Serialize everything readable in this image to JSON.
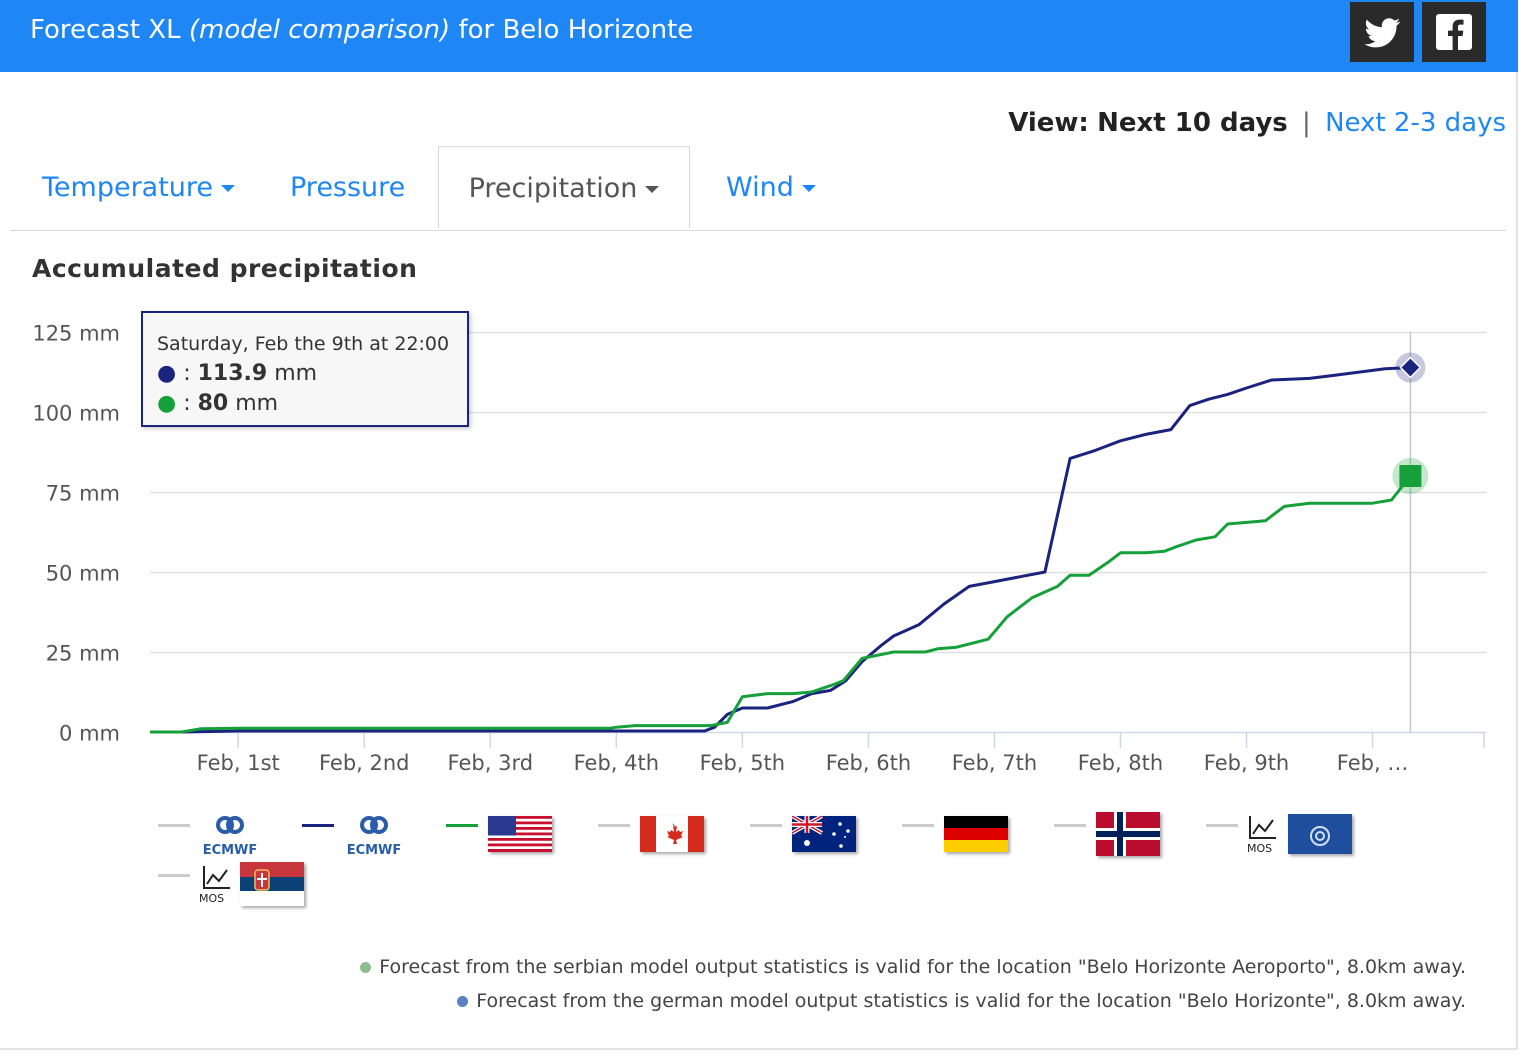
{
  "header": {
    "title_prefix": "Forecast XL",
    "title_italic": "(model comparison)",
    "title_suffix": "for Belo Horizonte",
    "twitter_icon": "twitter-icon",
    "facebook_icon": "facebook-icon"
  },
  "view": {
    "label": "View:",
    "current": "Next 10 days",
    "separator": "|",
    "alternate": "Next 2-3 days"
  },
  "tabs": [
    {
      "label": "Temperature",
      "dropdown": true
    },
    {
      "label": "Pressure",
      "dropdown": false
    },
    {
      "label": "Precipitation",
      "dropdown": true,
      "active": true
    },
    {
      "label": "Wind",
      "dropdown": true
    }
  ],
  "tooltip": {
    "header": "Saturday, Feb the 9th at 22:00",
    "rows": [
      {
        "sep": ":",
        "value": "113.9",
        "unit": "mm",
        "color": "#1a237e"
      },
      {
        "sep": ":",
        "value": "80",
        "unit": "mm",
        "color": "#16a03a"
      }
    ]
  },
  "chart_data": {
    "type": "line",
    "title": "Accumulated precipitation",
    "y_unit": "mm",
    "ylim": [
      0,
      125
    ],
    "y_ticks": [
      0,
      25,
      50,
      75,
      100,
      125
    ],
    "y_tick_labels": [
      "0 mm",
      "25 mm",
      "50 mm",
      "75 mm",
      "100 mm",
      "125 mm"
    ],
    "xlim": [
      0.3,
      10.9
    ],
    "x_ticks": [
      1,
      2,
      3,
      4,
      5,
      6,
      7,
      8,
      9,
      10
    ],
    "x_tick_labels": [
      "Feb, 1st",
      "Feb, 2nd",
      "Feb, 3rd",
      "Feb, 4th",
      "Feb, 5th",
      "Feb, 6th",
      "Feb, 7th",
      "Feb, 8th",
      "Feb, 9th",
      "Feb, …"
    ],
    "x_unit": "day of February",
    "grid": true,
    "series": [
      {
        "color": "#1a237e",
        "x": [
          0.3,
          0.55,
          1.0,
          2.0,
          3.0,
          4.0,
          4.7,
          4.78,
          4.88,
          5.0,
          5.2,
          5.4,
          5.55,
          5.7,
          5.82,
          5.95,
          6.1,
          6.2,
          6.4,
          6.6,
          6.8,
          7.0,
          7.2,
          7.4,
          7.6,
          7.8,
          8.0,
          8.2,
          8.4,
          8.55,
          8.7,
          8.85,
          9.0,
          9.2,
          9.5,
          9.7,
          9.9,
          10.1,
          10.3
        ],
        "values": [
          0,
          0,
          0.3,
          0.3,
          0.3,
          0.3,
          0.3,
          1.5,
          5.5,
          7.5,
          7.5,
          9.5,
          12,
          13,
          16,
          22,
          27,
          30,
          33.5,
          40,
          45.5,
          47,
          48.5,
          50,
          85.5,
          88,
          91,
          93,
          94.5,
          102,
          104,
          105.5,
          107.5,
          110,
          110.5,
          111.5,
          112.5,
          113.5,
          113.9
        ]
      },
      {
        "color": "#16a03a",
        "x": [
          0.3,
          0.55,
          0.7,
          1.0,
          2.0,
          3.0,
          3.95,
          4.0,
          4.15,
          4.3,
          4.6,
          4.75,
          4.88,
          5.0,
          5.2,
          5.4,
          5.55,
          5.7,
          5.8,
          5.95,
          6.2,
          6.45,
          6.55,
          6.7,
          6.95,
          7.1,
          7.3,
          7.5,
          7.6,
          7.75,
          7.9,
          8.0,
          8.2,
          8.35,
          8.45,
          8.6,
          8.75,
          8.85,
          9.0,
          9.15,
          9.3,
          9.5,
          9.7,
          9.9,
          10.0,
          10.15,
          10.3
        ],
        "values": [
          0,
          0,
          1,
          1.2,
          1.2,
          1.2,
          1.2,
          1.5,
          2,
          2,
          2,
          2,
          3,
          11,
          12,
          12,
          12.5,
          14.5,
          16,
          23,
          25,
          25,
          26,
          26.5,
          29,
          36,
          42,
          45.5,
          49,
          49,
          53,
          56,
          56,
          56.5,
          58,
          60,
          61,
          65,
          65.5,
          66,
          70.5,
          71.5,
          71.5,
          71.5,
          71.5,
          72.5,
          80
        ]
      }
    ],
    "legend": [
      {
        "line_color": "#cccccc",
        "icon": "ecmwf-logo",
        "label": "ECMWF"
      },
      {
        "line_color": "#1a237e",
        "icon": "ecmwf-logo",
        "label": "ECMWF"
      },
      {
        "line_color": "#16a03a",
        "icon": "usa-flag"
      },
      {
        "line_color": "#cccccc",
        "icon": "canada-flag"
      },
      {
        "line_color": "#cccccc",
        "icon": "australia-flag"
      },
      {
        "line_color": "#cccccc",
        "icon": "germany-flag"
      },
      {
        "line_color": "#cccccc",
        "icon": "norway-flag"
      },
      {
        "line_color": "#cccccc",
        "icon": "mos-dwd-logo",
        "label": "MOS"
      },
      {
        "line_color": "#cccccc",
        "icon": "mos-serbia-flag",
        "label": "MOS"
      }
    ]
  },
  "notes": [
    {
      "color": "#8fbc8f",
      "text": "Forecast from the serbian model output statistics is valid for the location \"Belo Horizonte Aeroporto\", 8.0km away."
    },
    {
      "color": "#5b7fbf",
      "text": "Forecast from the german model output statistics is valid for the location \"Belo Horizonte\", 8.0km away."
    }
  ]
}
